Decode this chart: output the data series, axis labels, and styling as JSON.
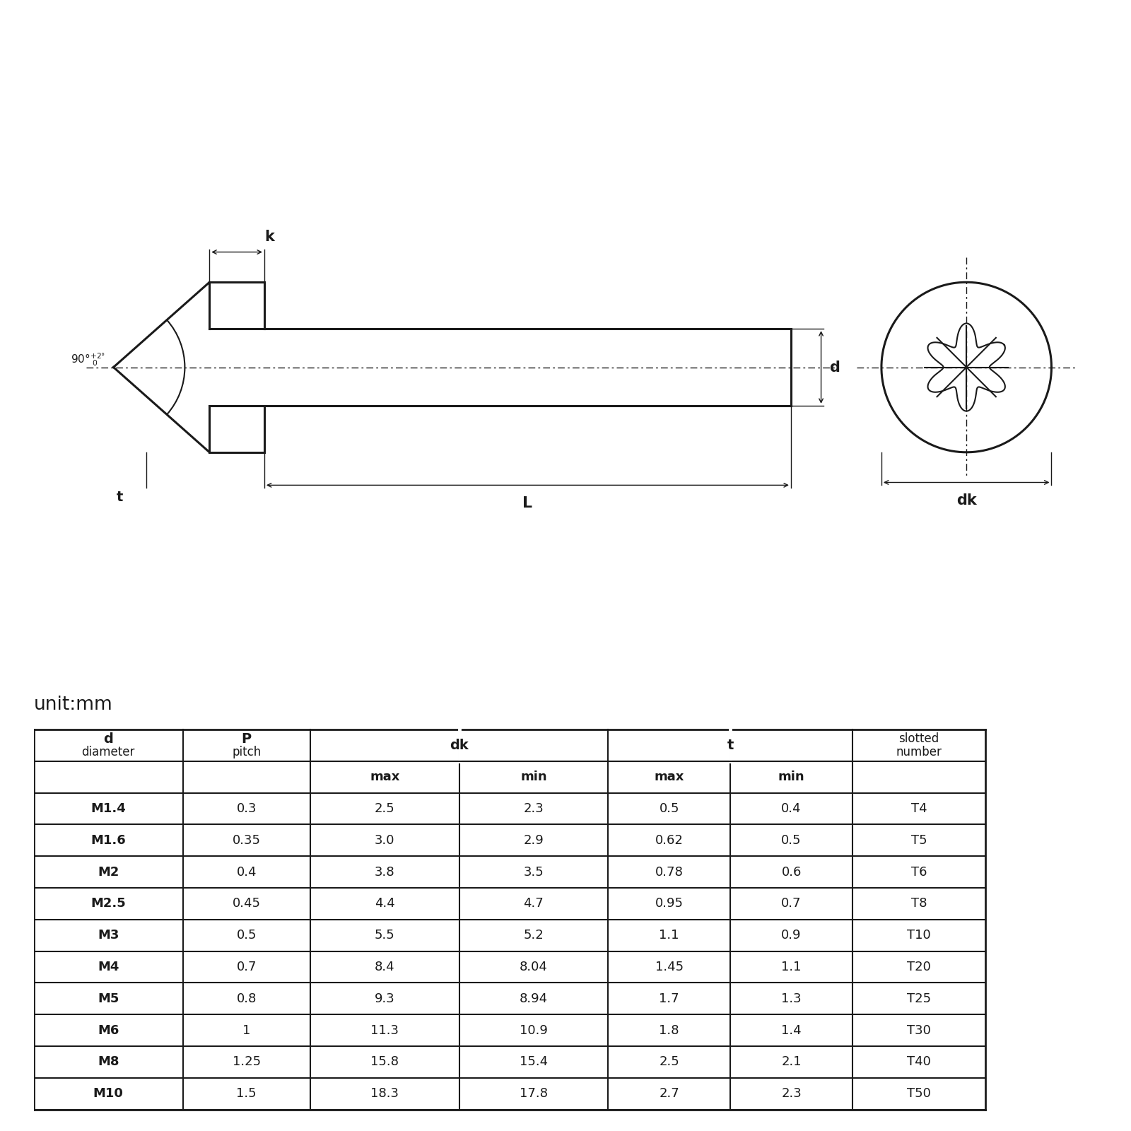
{
  "unit_label": "unit:mm",
  "table_data": [
    [
      "M1.4",
      "0.3",
      "2.5",
      "2.3",
      "0.5",
      "0.4",
      "T4"
    ],
    [
      "M1.6",
      "0.35",
      "3.0",
      "2.9",
      "0.62",
      "0.5",
      "T5"
    ],
    [
      "M2",
      "0.4",
      "3.8",
      "3.5",
      "0.78",
      "0.6",
      "T6"
    ],
    [
      "M2.5",
      "0.45",
      "4.4",
      "4.7",
      "0.95",
      "0.7",
      "T8"
    ],
    [
      "M3",
      "0.5",
      "5.5",
      "5.2",
      "1.1",
      "0.9",
      "T10"
    ],
    [
      "M4",
      "0.7",
      "8.4",
      "8.04",
      "1.45",
      "1.1",
      "T20"
    ],
    [
      "M5",
      "0.8",
      "9.3",
      "8.94",
      "1.7",
      "1.3",
      "T25"
    ],
    [
      "M6",
      "1",
      "11.3",
      "10.9",
      "1.8",
      "1.4",
      "T30"
    ],
    [
      "M8",
      "1.25",
      "15.8",
      "15.4",
      "2.5",
      "2.1",
      "T40"
    ],
    [
      "M10",
      "1.5",
      "18.3",
      "17.8",
      "2.7",
      "2.3",
      "T50"
    ]
  ],
  "bg_color": "#ffffff",
  "line_color": "#1a1a1a",
  "dim_k": "k",
  "dim_d": "d",
  "dim_L": "L",
  "dim_t": "t",
  "dim_dk": "dk"
}
